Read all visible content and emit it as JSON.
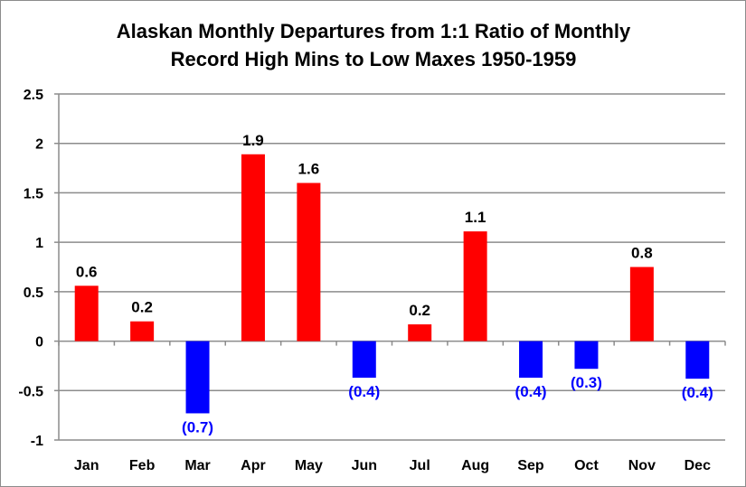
{
  "chart_data": {
    "type": "bar",
    "title": [
      "Alaskan Monthly Departures from 1:1 Ratio of Monthly",
      "Record High Mins to Low Maxes 1950-1959"
    ],
    "categories": [
      "Jan",
      "Feb",
      "Mar",
      "Apr",
      "May",
      "Jun",
      "Jul",
      "Aug",
      "Sep",
      "Oct",
      "Nov",
      "Dec"
    ],
    "values": [
      0.56,
      0.2,
      -0.73,
      1.89,
      1.6,
      -0.37,
      0.17,
      1.11,
      -0.37,
      -0.28,
      0.75,
      -0.38
    ],
    "data_labels": [
      "0.6",
      "0.2",
      "(0.7)",
      "1.9",
      "1.6",
      "(0.4)",
      "0.2",
      "1.1",
      "(0.4)",
      "(0.3)",
      "0.8",
      "(0.4)"
    ],
    "ylim": [
      -1,
      2.5
    ],
    "yticks": [
      -1,
      -0.5,
      0,
      0.5,
      1,
      1.5,
      2,
      2.5
    ],
    "ytick_labels": [
      "-1",
      "-0.5",
      "0",
      "0.5",
      "1",
      "1.5",
      "2",
      "2.5"
    ],
    "xlabel": "",
    "ylabel": "",
    "grid": true,
    "legend": "none",
    "colors": {
      "positive": "#ff0000",
      "negative": "#0000ff",
      "positive_label": "#000000",
      "negative_label": "#0000ff",
      "grid": "#8c8c8c"
    }
  }
}
